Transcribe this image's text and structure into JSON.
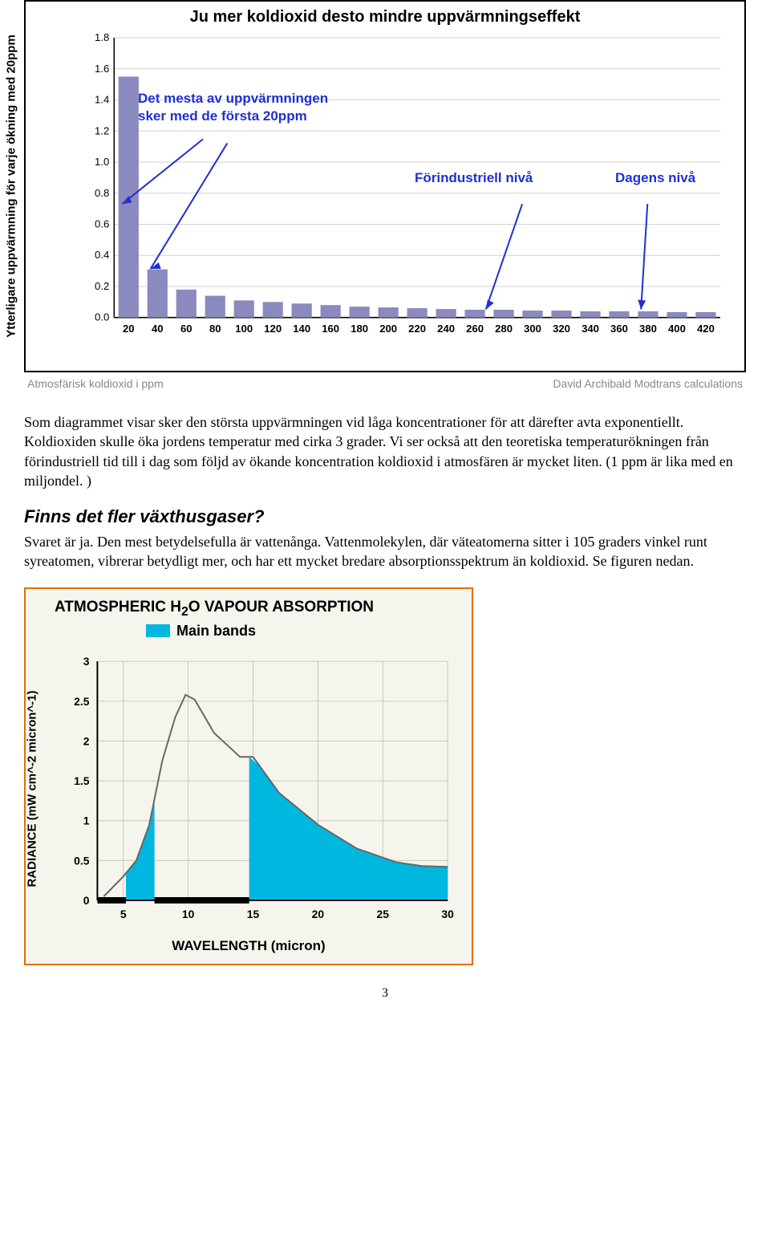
{
  "chart1": {
    "type": "bar",
    "title": "Ju mer koldioxid desto mindre uppvärmningseffekt",
    "yaxis_label": "Ytterligare uppvärmning för varje ökning med 20ppm",
    "ylim": [
      0.0,
      1.8
    ],
    "ytick_step": 0.2,
    "yticks": [
      "0.0",
      "0.2",
      "0.4",
      "0.6",
      "0.8",
      "1.0",
      "1.2",
      "1.4",
      "1.6",
      "1.8"
    ],
    "categories": [
      "20",
      "40",
      "60",
      "80",
      "100",
      "120",
      "140",
      "160",
      "180",
      "200",
      "220",
      "240",
      "260",
      "280",
      "300",
      "320",
      "340",
      "360",
      "380",
      "400",
      "420"
    ],
    "values": [
      1.55,
      0.31,
      0.18,
      0.14,
      0.11,
      0.1,
      0.09,
      0.08,
      0.07,
      0.065,
      0.06,
      0.055,
      0.05,
      0.05,
      0.045,
      0.045,
      0.04,
      0.04,
      0.04,
      0.035,
      0.035
    ],
    "bar_color": "#8a8abf",
    "grid_color": "#d0d0d0",
    "background_color": "#ffffff",
    "bar_width": 0.7,
    "xaxis_tick_color": "#e03030",
    "annotations": {
      "a1_line1": "Det mesta av uppvärmningen",
      "a1_line2": "sker med de första 20ppm",
      "a2": "Förindustriell nivå",
      "a3": "Dagens nivå",
      "anno_color": "#2030d0"
    },
    "caption_left": "Atmosfärisk koldioxid i ppm",
    "caption_right": "David Archibald Modtrans calculations",
    "caption_color": "#888888"
  },
  "para1": "Som diagrammet visar sker den största uppvärmningen vid låga koncentrationer för att därefter avta exponentiellt.  Koldioxiden  skulle öka jordens temperatur med cirka 3 grader. Vi ser också att den teoretiska temperaturökningen från förindustriell tid till i dag som följd av ökande koncentration koldioxid i atmosfären är mycket liten. (1 ppm är lika med en miljondel. )",
  "heading": "Finns det fler växthusgaser?",
  "para2": "Svaret är ja. Den mest betydelsefulla är vattenånga. Vattenmolekylen, där väteatomerna sitter i 105 graders vinkel runt syreatomen, vibrerar betydligt mer, och har ett mycket bredare absorptionsspektrum än koldioxid. Se figuren nedan.",
  "chart2": {
    "type": "area",
    "title_prefix": "ATMOSPHERIC H",
    "title_sub": "2",
    "title_suffix": "O VAPOUR ABSORPTION",
    "legend_label": "Main bands",
    "band_color": "#00b7e0",
    "yaxis_label": "RADIANCE (mW cm^-2 micron^-1)",
    "xaxis_label": "WAVELENGTH (micron)",
    "ylim": [
      0,
      3
    ],
    "yticks": [
      "0",
      "0.5",
      "1",
      "1.5",
      "2",
      "2.5",
      "3"
    ],
    "xlim": [
      3,
      30
    ],
    "xticks": [
      "5",
      "10",
      "15",
      "20",
      "25",
      "30"
    ],
    "curve_points": [
      [
        3.5,
        0.05
      ],
      [
        5,
        0.3
      ],
      [
        6,
        0.5
      ],
      [
        7,
        0.95
      ],
      [
        8,
        1.75
      ],
      [
        9,
        2.3
      ],
      [
        9.8,
        2.58
      ],
      [
        10.5,
        2.52
      ],
      [
        12,
        2.1
      ],
      [
        14,
        1.8
      ],
      [
        15,
        1.8
      ],
      [
        17,
        1.35
      ],
      [
        20,
        0.95
      ],
      [
        23,
        0.65
      ],
      [
        26,
        0.48
      ],
      [
        28,
        0.43
      ],
      [
        30,
        0.42
      ]
    ],
    "band1_x": [
      5.2,
      7.4
    ],
    "band2_x": [
      14.7,
      30
    ],
    "background_color": "#f5f5ee",
    "border_color": "#e07000",
    "grid_color": "#c8c8c0",
    "curve_color": "#666666"
  },
  "page_number": "3"
}
